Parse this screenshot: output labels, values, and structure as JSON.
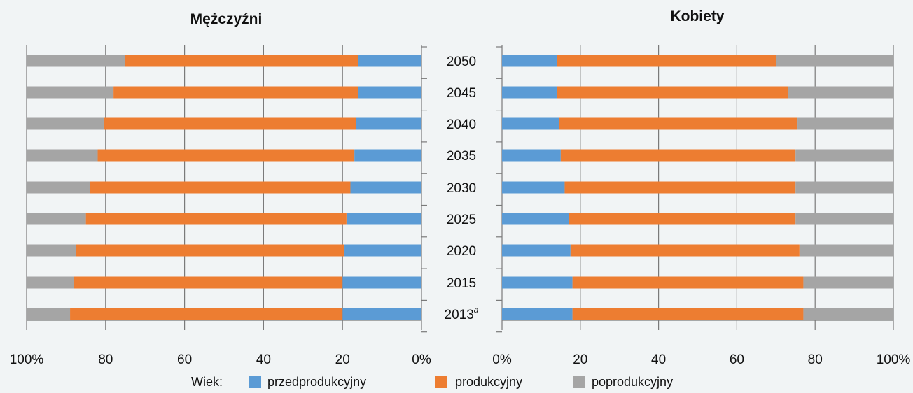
{
  "chart_data": [
    {
      "type": "bar",
      "orientation": "horizontal-stacked-percent",
      "title": "Mężczyźni",
      "axis_direction": "reversed",
      "categories": [
        "2050",
        "2045",
        "2040",
        "2035",
        "2030",
        "2025",
        "2020",
        "2015",
        "2013"
      ],
      "category_superscripts": {
        "2013": "a"
      },
      "xlim": [
        0,
        100
      ],
      "xticks": [
        "100%",
        "80",
        "60",
        "40",
        "20",
        "0%"
      ],
      "series": [
        {
          "name": "przedprodukcyjny",
          "color": "#5b9bd5",
          "values": [
            16,
            16,
            16.5,
            17,
            18,
            19,
            19.5,
            20,
            20
          ]
        },
        {
          "name": "produkcyjny",
          "color": "#ed7d31",
          "values": [
            59,
            62,
            64,
            65,
            66,
            66,
            68,
            68,
            69
          ]
        },
        {
          "name": "poprodukcyjny",
          "color": "#a5a5a5",
          "values": [
            25,
            22,
            19.5,
            18,
            16,
            15,
            12.5,
            12,
            11
          ]
        }
      ]
    },
    {
      "type": "bar",
      "orientation": "horizontal-stacked-percent",
      "title": "Kobiety",
      "axis_direction": "normal",
      "categories": [
        "2050",
        "2045",
        "2040",
        "2035",
        "2030",
        "2025",
        "2020",
        "2015",
        "2013"
      ],
      "category_superscripts": {
        "2013": "a"
      },
      "xlim": [
        0,
        100
      ],
      "xticks": [
        "0%",
        "20",
        "40",
        "60",
        "80",
        "100%"
      ],
      "series": [
        {
          "name": "przedprodukcyjny",
          "color": "#5b9bd5",
          "values": [
            14,
            14,
            14.5,
            15,
            16,
            17,
            17.5,
            18,
            18
          ]
        },
        {
          "name": "produkcyjny",
          "color": "#ed7d31",
          "values": [
            56,
            59,
            61,
            60,
            59,
            58,
            58.5,
            59,
            59
          ]
        },
        {
          "name": "poprodukcyjny",
          "color": "#a5a5a5",
          "values": [
            30,
            27,
            24.5,
            25,
            25,
            25,
            24,
            23,
            23
          ]
        }
      ]
    }
  ],
  "legend": {
    "prefix": "Wiek:",
    "items": [
      "przedprodukcyjny",
      "produkcyjny",
      "poprodukcyjny"
    ]
  }
}
